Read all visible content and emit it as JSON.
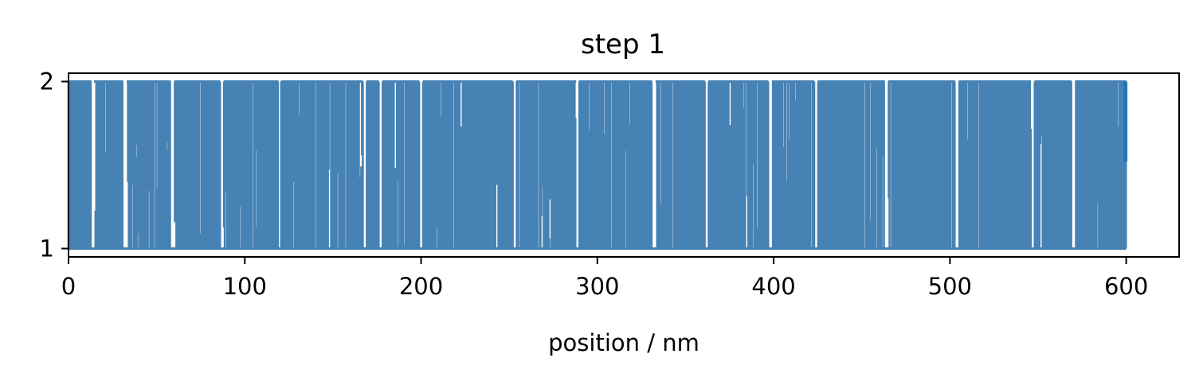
{
  "chart_data": {
    "type": "line",
    "title": "step 1",
    "xlabel": "position / nm",
    "ylabel": "",
    "xlim": [
      0,
      630
    ],
    "ylim": [
      0.95,
      2.05
    ],
    "x_ticks": [
      0,
      100,
      200,
      300,
      400,
      500,
      600
    ],
    "x_tick_labels": [
      "0",
      "100",
      "200",
      "300",
      "400",
      "500",
      "600"
    ],
    "y_ticks": [
      1,
      2
    ],
    "y_tick_labels": [
      "1",
      "2"
    ],
    "grid": false,
    "legend": "none",
    "series": [
      {
        "color": "#4682b4",
        "x_start": 0,
        "x_end": 600,
        "y_min": 1,
        "y_max": 2,
        "fill_fraction": 0.88,
        "note_steps": "dense series of vertical transitions between 1 and 2"
      }
    ],
    "gaps": [
      [
        13,
        14.5
      ],
      [
        31,
        33
      ],
      [
        58,
        60
      ],
      [
        86,
        88
      ],
      [
        119,
        120.5
      ],
      [
        167,
        169
      ],
      [
        176,
        178
      ],
      [
        199,
        201
      ],
      [
        252,
        254
      ],
      [
        288,
        289.5
      ],
      [
        331,
        333
      ],
      [
        361,
        363
      ],
      [
        397,
        399
      ],
      [
        423,
        425
      ],
      [
        463,
        465
      ],
      [
        503,
        505
      ],
      [
        546,
        548
      ],
      [
        569,
        571
      ]
    ],
    "end_mark": {
      "x": 600,
      "y_low": 1.52,
      "y_high": 2.0,
      "color": "#1f77b4"
    }
  }
}
